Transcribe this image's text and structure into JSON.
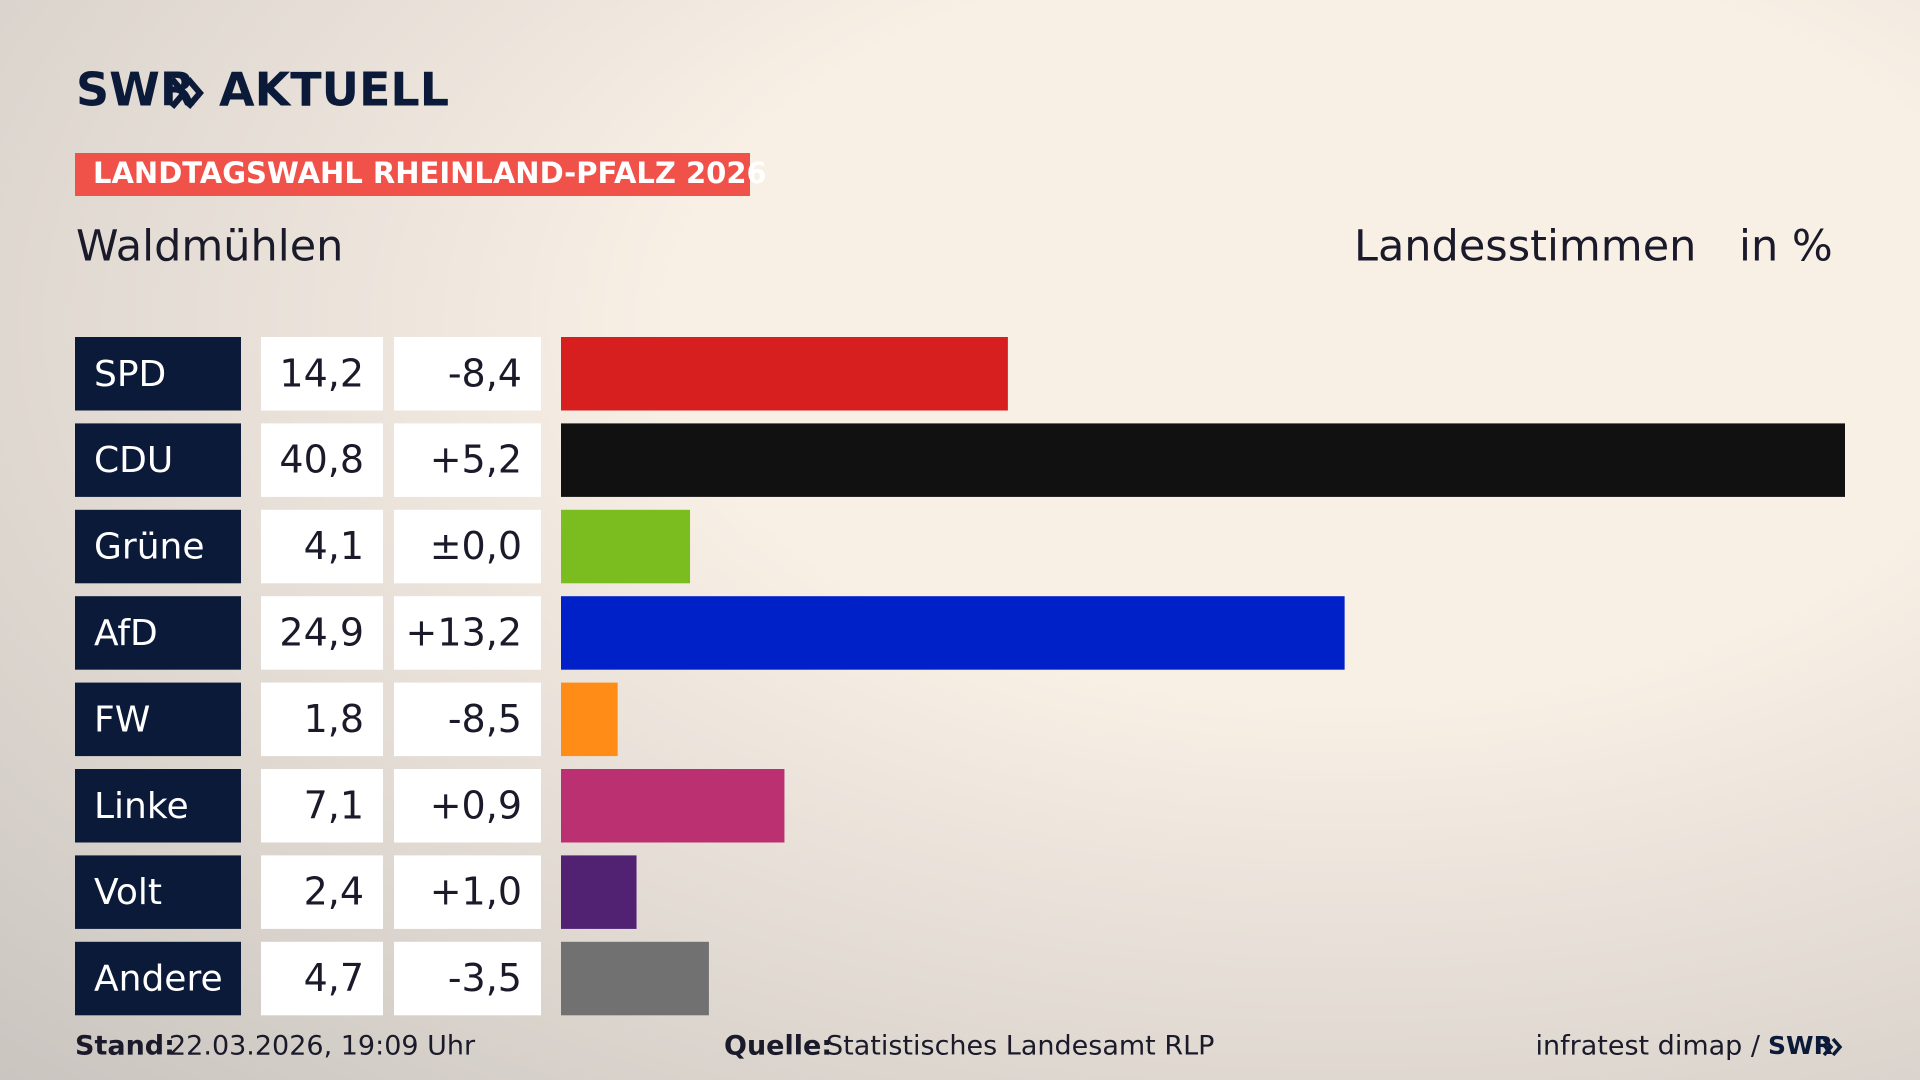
{
  "brand": {
    "logo_left": "SWR",
    "logo_right": "AKTUELL"
  },
  "chart_data": {
    "type": "bar",
    "title": "LANDTAGSWAHL RHEINLAND-PFALZ 2026",
    "subtitle": "Waldmühlen",
    "measure": "Landesstimmen",
    "unit": "in %",
    "categories": [
      "SPD",
      "CDU",
      "Grüne",
      "AfD",
      "FW",
      "Linke",
      "Volt",
      "Andere"
    ],
    "values": [
      14.2,
      40.8,
      4.1,
      24.9,
      1.8,
      7.1,
      2.4,
      4.7
    ],
    "value_labels": [
      "14,2",
      "40,8",
      "4,1",
      "24,9",
      "1,8",
      "7,1",
      "2,4",
      "4,7"
    ],
    "change_labels": [
      "-8,4",
      "+5,2",
      "±0,0",
      "+13,2",
      "-8,5",
      "+0,9",
      "+1,0",
      "-3,5"
    ],
    "colors": [
      "#d71f20",
      "#111111",
      "#7bbd1e",
      "#0021c8",
      "#ff8c16",
      "#bb3070",
      "#512172",
      "#717171"
    ]
  },
  "footer": {
    "stand_label": "Stand:",
    "stand": "22.03.2026, 19:09 Uhr",
    "source_label": "Quelle:",
    "source": "Statistisches Landesamt RLP",
    "credit": "infratest dimap /",
    "credit_logo": "SWR"
  }
}
